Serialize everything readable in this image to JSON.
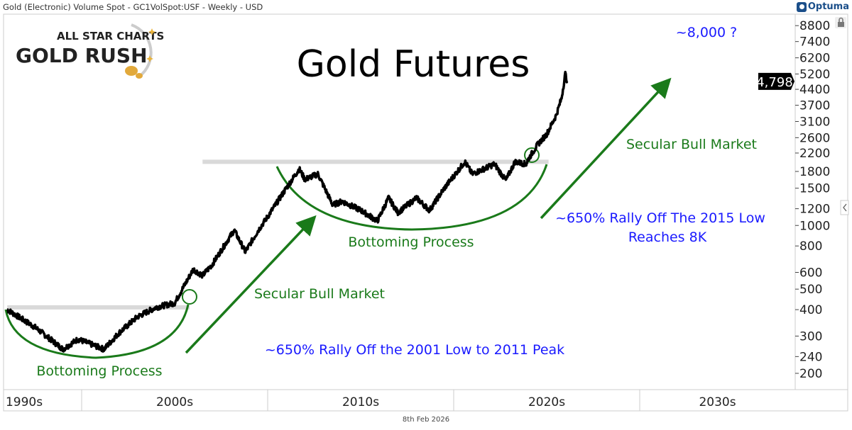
{
  "header": {
    "title": "Gold (Electronic) Volume Spot - GC1VolSpot:USF - Weekly - USD",
    "brand": "Optuma"
  },
  "logo": {
    "line1": "ALL STAR CHARTS",
    "line2": "GOLD RUSH"
  },
  "footer": {
    "date": "8th Feb 2026"
  },
  "colors": {
    "price": "#000000",
    "annotation": "#1a7a1a",
    "blue_text": "#1a1aff",
    "resistance": "#d9d9d9"
  },
  "chart_data": {
    "type": "line",
    "title": "Gold Futures",
    "yscale": "log",
    "ylim": [
      190,
      9500
    ],
    "xlim": [
      1995.8,
      2037.6
    ],
    "yticks": [
      8800,
      7400,
      6200,
      5200,
      4400,
      3700,
      3100,
      2600,
      2200,
      1800,
      1500,
      1200,
      1000,
      800,
      600,
      500,
      400,
      300,
      240,
      200
    ],
    "ytick_labels": [
      "8800",
      "7400",
      "6200",
      "5200",
      "4400",
      "3700",
      "3100",
      "2600",
      "2200",
      "1800",
      "1500",
      "1200",
      "1000",
      "800",
      "600",
      "500",
      "400",
      "300",
      "240",
      "200"
    ],
    "xticks": [
      {
        "label": "1990s",
        "from": 1990,
        "to": 2000
      },
      {
        "label": "2000s",
        "from": 2000,
        "to": 2010
      },
      {
        "label": "2010s",
        "from": 2010,
        "to": 2020
      },
      {
        "label": "2020s",
        "from": 2020,
        "to": 2030
      },
      {
        "label": "2030s",
        "from": 2030,
        "to": 2040
      }
    ],
    "last_price_label": "4,798",
    "series": [
      {
        "x": [
          1996,
          1997.5,
          1999,
          1999.8,
          2001.2,
          2002,
          2003,
          2004,
          2005,
          2006,
          2006.5,
          2007,
          2008.2,
          2008.8,
          2009.5,
          2010,
          2011,
          2011.7,
          2012,
          2012.7,
          2013.5,
          2014,
          2015,
          2015.9,
          2016.5,
          2017,
          2018,
          2018.7,
          2019.5,
          2020.6,
          2021,
          2022.2,
          2022.8,
          2023.3,
          2023.9,
          2024,
          2024.5,
          2025,
          2025.5,
          2025.8,
          2026.0,
          2026.1
        ],
        "y": [
          400,
          330,
          260,
          290,
          260,
          310,
          370,
          410,
          430,
          620,
          580,
          650,
          950,
          750,
          950,
          1100,
          1500,
          1850,
          1650,
          1750,
          1250,
          1300,
          1180,
          1050,
          1350,
          1150,
          1350,
          1180,
          1500,
          2000,
          1750,
          1950,
          1630,
          2000,
          1950,
          2050,
          2400,
          2700,
          3300,
          4000,
          5200,
          4798
        ]
      }
    ],
    "annotations": {
      "resistance_levels": [
        {
          "price": 410,
          "from": 1996,
          "to": 2005.8
        },
        {
          "price": 2000,
          "from": 2006.5,
          "to": 2025.1
        }
      ],
      "breakout_points": [
        {
          "x": 2005.8,
          "price": 460
        },
        {
          "x": 2024.2,
          "price": 2150
        }
      ],
      "bottoms": [
        {
          "label": "Bottoming Process"
        },
        {
          "label": "Bottoming Process"
        }
      ],
      "arrow_labels": [
        "Secular Bull Market",
        "Secular Bull Market"
      ],
      "rally_text_1": "~650% Rally Off the 2001 Low to 2011 Peak",
      "rally_text_2a": "~650% Rally Off The 2015 Low",
      "rally_text_2b": "Reaches 8K",
      "target": "~8,000 ?"
    }
  }
}
